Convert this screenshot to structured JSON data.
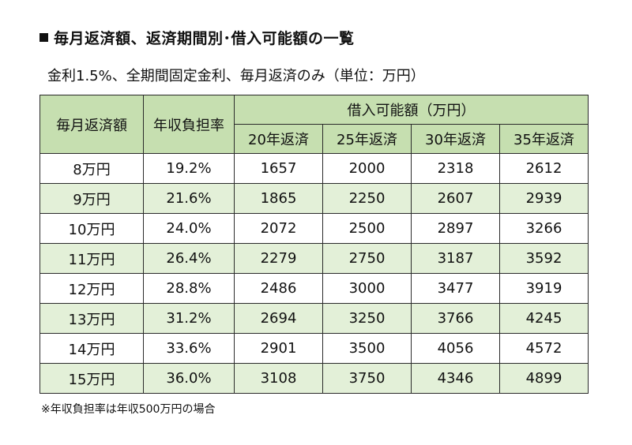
{
  "title": "毎月返済額、返済期間別･借入可能額の一覧",
  "subtitle": "金利1.5%、全期間固定金利、毎月返済のみ（単位：万円）",
  "table": {
    "headers": {
      "monthly": "毎月返済額",
      "ratio": "年収負担率",
      "group": "借入可能額（万円）",
      "periods": [
        "20年返済",
        "25年返済",
        "30年返済",
        "35年返済"
      ]
    },
    "rows": [
      {
        "monthly": "8万円",
        "ratio": "19.2%",
        "values": [
          "1657",
          "2000",
          "2318",
          "2612"
        ]
      },
      {
        "monthly": "9万円",
        "ratio": "21.6%",
        "values": [
          "1865",
          "2250",
          "2607",
          "2939"
        ]
      },
      {
        "monthly": "10万円",
        "ratio": "24.0%",
        "values": [
          "2072",
          "2500",
          "2897",
          "3266"
        ]
      },
      {
        "monthly": "11万円",
        "ratio": "26.4%",
        "values": [
          "2279",
          "2750",
          "3187",
          "3592"
        ]
      },
      {
        "monthly": "12万円",
        "ratio": "28.8%",
        "values": [
          "2486",
          "3000",
          "3477",
          "3919"
        ]
      },
      {
        "monthly": "13万円",
        "ratio": "31.2%",
        "values": [
          "2694",
          "3250",
          "3766",
          "4245"
        ]
      },
      {
        "monthly": "14万円",
        "ratio": "33.6%",
        "values": [
          "2901",
          "3500",
          "4056",
          "4572"
        ]
      },
      {
        "monthly": "15万円",
        "ratio": "36.0%",
        "values": [
          "3108",
          "3750",
          "4346",
          "4899"
        ]
      }
    ]
  },
  "note": "※年収負担率は年収500万円の場合",
  "colors": {
    "header_bg": "#c6dfb0",
    "stripe_bg": "#e3f0d8",
    "border": "#2a2a2a"
  }
}
